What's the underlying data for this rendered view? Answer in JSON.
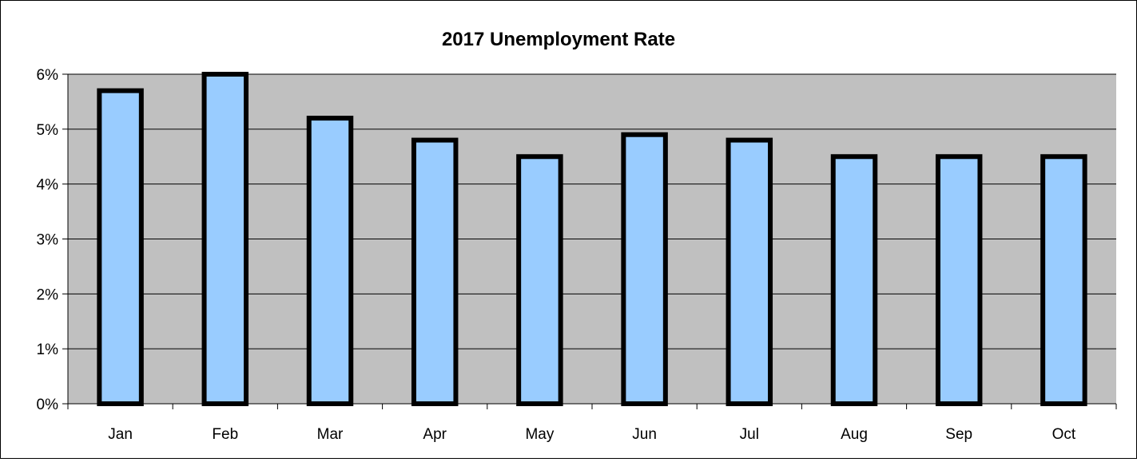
{
  "chart_data": {
    "type": "bar",
    "title": "2017 Unemployment Rate",
    "xlabel": "",
    "ylabel": "",
    "categories": [
      "Jan",
      "Feb",
      "Mar",
      "Apr",
      "May",
      "Jun",
      "Jul",
      "Aug",
      "Sep",
      "Oct"
    ],
    "values": [
      5.7,
      6.0,
      5.2,
      4.8,
      4.5,
      4.9,
      4.8,
      4.5,
      4.5,
      4.5
    ],
    "ylim": [
      0,
      6
    ],
    "yticks": [
      0,
      1,
      2,
      3,
      4,
      5,
      6
    ],
    "ytick_labels": [
      "0%",
      "1%",
      "2%",
      "3%",
      "4%",
      "5%",
      "6%"
    ],
    "grid": true,
    "legend": "none",
    "colors": {
      "bar_fill": "#99ccff",
      "bar_outline": "#000000",
      "plot_background": "#c0c0c0",
      "gridline": "#000000"
    }
  }
}
